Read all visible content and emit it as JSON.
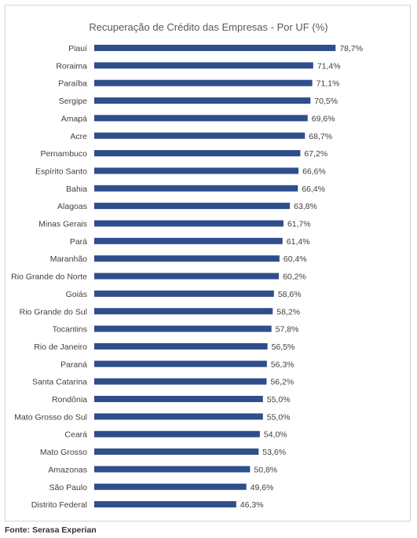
{
  "chart_data": {
    "type": "bar",
    "orientation": "horizontal",
    "title": "Recuperação de Crédito das Empresas - Por UF (%)",
    "xlim": [
      0,
      90
    ],
    "grid": false,
    "legend": "none",
    "bar_color": "#2E4E8C",
    "categories": [
      "Piauí",
      "Roraima",
      "Paraíba",
      "Sergipe",
      "Amapá",
      "Acre",
      "Pernambuco",
      "Espírito Santo",
      "Bahia",
      "Alagoas",
      "Minas Gerais",
      "Pará",
      "Maranhão",
      "Rio Grande do Norte",
      "Goiás",
      "Rio Grande do Sul",
      "Tocantins",
      "Rio de Janeiro",
      "Paraná",
      "Santa Catarina",
      "Rondônia",
      "Mato Grosso do Sul",
      "Ceará",
      "Mato Grosso",
      "Amazonas",
      "São Paulo",
      "Distrito Federal"
    ],
    "values": [
      78.7,
      71.4,
      71.1,
      70.5,
      69.6,
      68.7,
      67.2,
      66.6,
      66.4,
      63.8,
      61.7,
      61.4,
      60.4,
      60.2,
      58.6,
      58.2,
      57.8,
      56.5,
      56.3,
      56.2,
      55.0,
      55.0,
      54.0,
      53.6,
      50.8,
      49.6,
      46.3
    ],
    "labels": [
      "78,7%",
      "71,4%",
      "71,1%",
      "70,5%",
      "69,6%",
      "68,7%",
      "67,2%",
      "66,6%",
      "66,4%",
      "63,8%",
      "61,7%",
      "61,4%",
      "60,4%",
      "60,2%",
      "58,6%",
      "58,2%",
      "57,8%",
      "56,5%",
      "56,3%",
      "56,2%",
      "55,0%",
      "55,0%",
      "54,0%",
      "53,6%",
      "50,8%",
      "49,6%",
      "46,3%"
    ]
  },
  "footer": {
    "source": "Fonte: Serasa Experian"
  }
}
